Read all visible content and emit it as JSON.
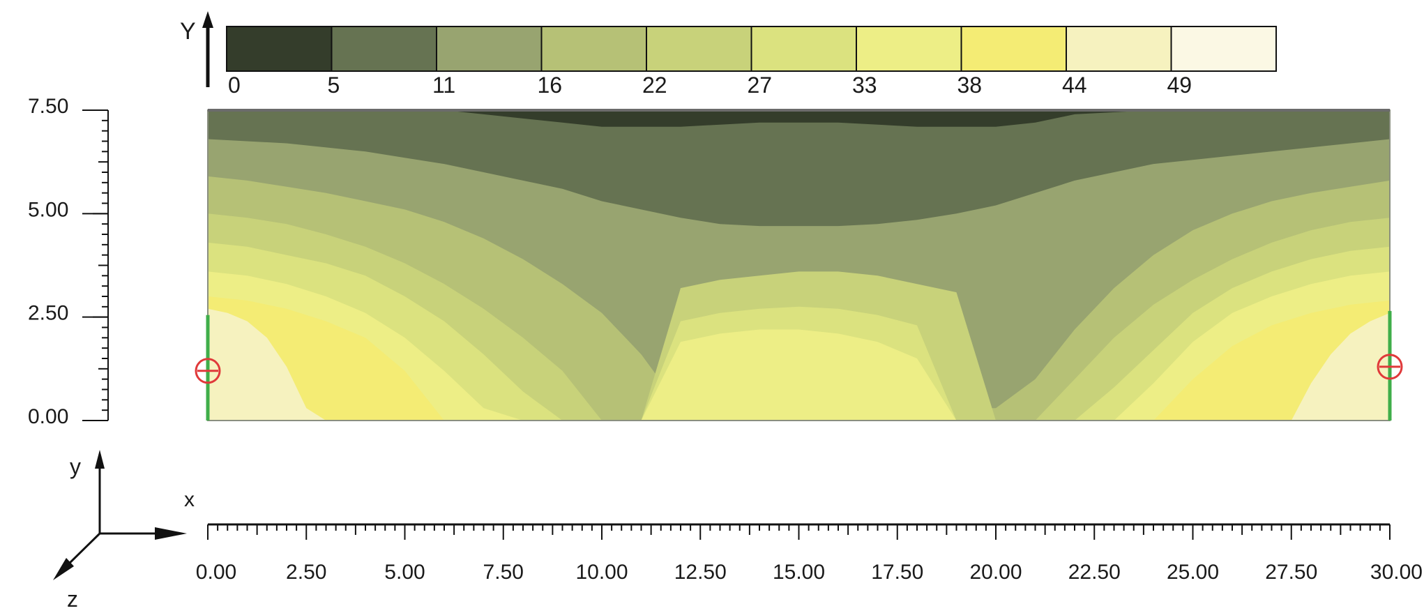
{
  "chart_data": {
    "type": "heatmap",
    "title": "",
    "legend": {
      "axis_letter": "Y",
      "placement": "top",
      "ticks": [
        0,
        5,
        11,
        16,
        22,
        27,
        33,
        38,
        44,
        49
      ],
      "bands": [
        {
          "from": 0,
          "to": 5,
          "color": "#343d2b"
        },
        {
          "from": 5,
          "to": 11,
          "color": "#667352"
        },
        {
          "from": 11,
          "to": 16,
          "color": "#98a470"
        },
        {
          "from": 16,
          "to": 22,
          "color": "#b6c176"
        },
        {
          "from": 22,
          "to": 27,
          "color": "#c8d27a"
        },
        {
          "from": 27,
          "to": 33,
          "color": "#dbe27f"
        },
        {
          "from": 33,
          "to": 38,
          "color": "#edee86"
        },
        {
          "from": 38,
          "to": 44,
          "color": "#f4ec74"
        },
        {
          "from": 44,
          "to": 49,
          "color": "#f6f2bf"
        },
        {
          "from": 49,
          "to": 55,
          "color": "#fbf8e4"
        }
      ]
    },
    "x_axis": {
      "label": "x",
      "range": [
        0,
        30
      ],
      "ticks": [
        "0.00",
        "2.50",
        "5.00",
        "7.50",
        "10.00",
        "12.50",
        "15.00",
        "17.50",
        "20.00",
        "22.50",
        "25.00",
        "27.50",
        "30.00"
      ]
    },
    "y_axis": {
      "label": "",
      "range": [
        0,
        7.5
      ],
      "ticks": [
        "0.00",
        "2.50",
        "5.00",
        "7.50"
      ]
    },
    "triad": {
      "y": "y",
      "x": "x",
      "z": "z"
    },
    "supports": [
      {
        "x": 0,
        "y": 1.2
      },
      {
        "x": 30,
        "y": 1.3
      }
    ],
    "contour_fields": [
      {
        "level_min": 5,
        "color": "#667352",
        "x": [
          0,
          6,
          7,
          8,
          9,
          10,
          12,
          14,
          15,
          16,
          18,
          20,
          21,
          22,
          24,
          26,
          28,
          30
        ],
        "y": [
          7.5,
          7.5,
          7.4,
          7.3,
          7.2,
          7.1,
          7.1,
          7.2,
          7.2,
          7.2,
          7.1,
          7.1,
          7.2,
          7.4,
          7.5,
          7.5,
          7.5,
          7.5
        ]
      },
      {
        "level_min": 11,
        "color": "#98a470",
        "x": [
          0,
          2,
          3,
          4,
          5,
          6,
          7,
          8,
          9,
          10,
          11,
          12,
          13,
          14,
          15,
          16,
          17,
          18,
          19,
          20,
          21,
          22,
          23,
          24,
          25,
          26,
          27,
          28,
          29,
          30
        ],
        "y": [
          6.8,
          6.7,
          6.6,
          6.5,
          6.35,
          6.2,
          6.0,
          5.8,
          5.6,
          5.3,
          5.1,
          4.9,
          4.75,
          4.7,
          4.7,
          4.7,
          4.75,
          4.85,
          5.0,
          5.2,
          5.5,
          5.8,
          6.0,
          6.2,
          6.3,
          6.4,
          6.5,
          6.6,
          6.7,
          6.8
        ]
      },
      {
        "level_min": 16,
        "color": "#b6c176",
        "x": [
          0,
          1,
          2,
          3,
          4,
          5,
          6,
          7,
          8,
          9,
          10,
          11,
          12,
          13,
          14,
          15,
          16,
          17,
          18,
          19,
          20,
          21,
          22,
          23,
          24,
          25,
          26,
          27,
          28,
          29,
          30
        ],
        "y": [
          5.9,
          5.8,
          5.65,
          5.5,
          5.3,
          5.1,
          4.8,
          4.4,
          3.9,
          3.3,
          2.6,
          1.6,
          0.3,
          0.3,
          0.3,
          0.3,
          0.3,
          0.3,
          0.3,
          0.3,
          0.3,
          1.0,
          2.2,
          3.2,
          4.0,
          4.6,
          5.0,
          5.3,
          5.5,
          5.65,
          5.8
        ]
      },
      {
        "level_min": 22,
        "color": "#c8d27a",
        "x": [
          0,
          1,
          2,
          3,
          4,
          5,
          6,
          7,
          8,
          9,
          10,
          11,
          12,
          13,
          14,
          15,
          16,
          17,
          18,
          19,
          20,
          21,
          22,
          23,
          24,
          25,
          26,
          27,
          28,
          29,
          30
        ],
        "y": [
          5.0,
          4.9,
          4.75,
          4.5,
          4.2,
          3.8,
          3.3,
          2.7,
          2.0,
          1.2,
          0.0,
          0.0,
          3.2,
          3.4,
          3.5,
          3.6,
          3.6,
          3.5,
          3.3,
          3.1,
          0.0,
          0.0,
          1.0,
          2.0,
          2.8,
          3.4,
          3.9,
          4.3,
          4.6,
          4.8,
          4.9
        ]
      },
      {
        "level_min": 27,
        "color": "#dbe27f",
        "x": [
          0,
          1,
          2,
          3,
          4,
          5,
          6,
          7,
          8,
          9,
          10,
          11,
          12,
          13,
          14,
          15,
          16,
          17,
          18,
          19,
          20,
          21,
          22,
          23,
          24,
          25,
          26,
          27,
          28,
          29,
          30
        ],
        "y": [
          4.3,
          4.2,
          4.0,
          3.8,
          3.5,
          3.0,
          2.4,
          1.6,
          0.7,
          0.0,
          0.0,
          0.0,
          2.4,
          2.6,
          2.7,
          2.75,
          2.7,
          2.55,
          2.3,
          0.0,
          0.0,
          0.0,
          0.0,
          0.8,
          1.7,
          2.6,
          3.2,
          3.6,
          3.9,
          4.1,
          4.2
        ]
      },
      {
        "level_min": 33,
        "color": "#edee86",
        "x": [
          0,
          1,
          2,
          3,
          4,
          5,
          6,
          7,
          8,
          9,
          10,
          11,
          12,
          13,
          14,
          15,
          16,
          17,
          18,
          19,
          20,
          21,
          22,
          23,
          24,
          25,
          26,
          27,
          28,
          29,
          30
        ],
        "y": [
          3.6,
          3.5,
          3.3,
          3.0,
          2.6,
          2.0,
          1.2,
          0.3,
          0.0,
          0.0,
          0.0,
          0.0,
          1.9,
          2.1,
          2.2,
          2.2,
          2.1,
          1.9,
          1.5,
          0.0,
          0.0,
          0.0,
          0.0,
          0.0,
          0.9,
          1.9,
          2.6,
          3.0,
          3.3,
          3.5,
          3.6
        ]
      },
      {
        "level_min": 38,
        "color": "#f4ec74",
        "x": [
          0,
          1,
          2,
          3,
          4,
          5,
          6,
          7,
          8,
          9,
          10,
          11,
          12,
          13,
          14,
          15,
          16,
          17,
          18,
          19,
          20,
          21,
          22,
          23,
          24,
          25,
          26,
          27,
          28,
          29,
          30
        ],
        "y": [
          3.0,
          2.9,
          2.7,
          2.4,
          2.0,
          1.2,
          0.0,
          0.0,
          0.0,
          0.0,
          0.0,
          0.0,
          0.0,
          0.0,
          0.0,
          0.0,
          0.0,
          0.0,
          0.0,
          0.0,
          0.0,
          0.0,
          0.0,
          0.0,
          0.0,
          1.0,
          1.8,
          2.3,
          2.6,
          2.8,
          2.9
        ]
      },
      {
        "level_min": 44,
        "color": "#f6f2bf",
        "x": [
          0,
          0.5,
          1,
          1.5,
          2,
          2.5,
          3,
          27.5,
          28,
          28.5,
          29,
          29.5,
          30
        ],
        "y": [
          2.7,
          2.6,
          2.4,
          2.0,
          1.3,
          0.3,
          0.0,
          0.0,
          0.9,
          1.6,
          2.1,
          2.4,
          2.6
        ]
      }
    ]
  }
}
